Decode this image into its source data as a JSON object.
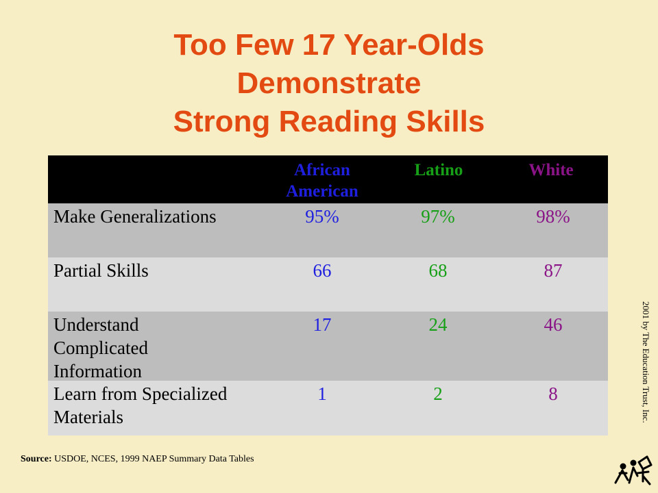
{
  "title": {
    "line1": "Too Few 17 Year-Olds",
    "line2": "Demonstrate",
    "line3": "Strong Reading Skills"
  },
  "table": {
    "columns": [
      "African American",
      "Latino",
      "White"
    ],
    "column_colors": [
      "#1f1fe0",
      "#17a017",
      "#8a1487"
    ],
    "rows": [
      {
        "label": "Make Generalizations",
        "values": [
          "95%",
          "97%",
          "98%"
        ]
      },
      {
        "label": "Partial Skills",
        "values": [
          "66",
          "68",
          "87"
        ]
      },
      {
        "label": "Understand Complicated Information",
        "values": [
          "17",
          "24",
          "46"
        ]
      },
      {
        "label": "Learn from Specialized Materials",
        "values": [
          "1",
          "2",
          "8"
        ]
      }
    ]
  },
  "source": {
    "label": "Source:",
    "text": "USDOE, NCES, 1999 NAEP Summary Data Tables"
  },
  "copyright": "2001 by The Education Trust, Inc.",
  "logo_icon": "education-trust-logo-icon"
}
